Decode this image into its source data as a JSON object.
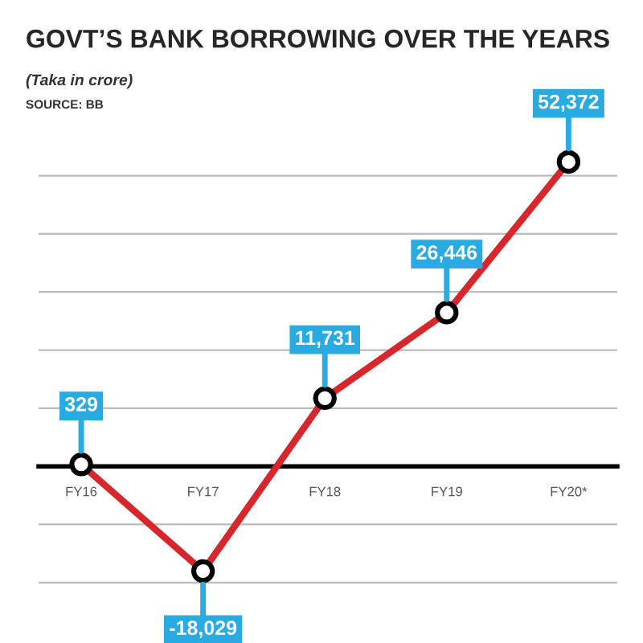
{
  "chart_data": {
    "type": "line",
    "title": "GOVT’S BANK BORROWING OVER THE YEARS",
    "subtitle": "(Taka in crore)",
    "annotations": [
      "SOURCE: BB"
    ],
    "categories": [
      "FY16",
      "FY17",
      "FY18",
      "FY19",
      "FY20*"
    ],
    "series": [
      {
        "color": "#d7262c",
        "values": [
          329,
          -18029,
          11731,
          26446,
          52372
        ],
        "value_labels": [
          "329",
          "-18,029",
          "11,731",
          "26,446",
          "52,372"
        ]
      }
    ],
    "grid": "y",
    "marker": "circle",
    "line_style": "solid"
  }
}
